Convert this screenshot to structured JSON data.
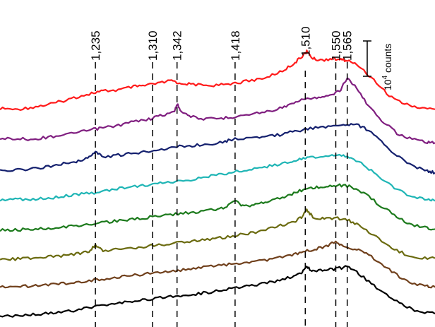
{
  "chart_data": {
    "type": "line",
    "title": "",
    "xlabel": "",
    "ylabel": "",
    "x_axis": "Raman shift (cm^-1), increasing left to right (not printed)",
    "xlim": [
      1110,
      1680
    ],
    "grid": false,
    "peak_lines": [
      {
        "label": "1,235",
        "x": 1235
      },
      {
        "label": "1,310",
        "x": 1310
      },
      {
        "label": "1,342",
        "x": 1342
      },
      {
        "label": "1,418",
        "x": 1418
      },
      {
        "label": "1,510",
        "x": 1510
      },
      {
        "label": "1,550",
        "x": 1550
      },
      {
        "label": "1,565",
        "x": 1565
      }
    ],
    "scale_bar": {
      "text": "10",
      "superscript": "4",
      "suffix": " counts"
    },
    "series": [
      {
        "color": "#ff1a1a",
        "x": [
          1110,
          1130,
          1150,
          1170,
          1190,
          1210,
          1230,
          1245,
          1265,
          1285,
          1300,
          1320,
          1335,
          1345,
          1360,
          1380,
          1400,
          1418,
          1440,
          1460,
          1480,
          1495,
          1505,
          1512,
          1520,
          1530,
          1545,
          1555,
          1565,
          1580,
          1600,
          1620,
          1640,
          1660,
          1680
        ],
        "y": [
          1.2,
          1.18,
          1.22,
          1.28,
          1.36,
          1.46,
          1.55,
          1.6,
          1.62,
          1.7,
          1.72,
          1.78,
          1.84,
          1.78,
          1.76,
          1.72,
          1.74,
          1.78,
          1.84,
          1.92,
          2.06,
          2.22,
          2.38,
          2.5,
          2.34,
          2.3,
          2.34,
          2.32,
          2.3,
          2.18,
          1.85,
          1.5,
          1.3,
          1.22,
          1.18
        ]
      },
      {
        "color": "#801f80",
        "x": [
          1110,
          1130,
          1150,
          1170,
          1190,
          1210,
          1230,
          1245,
          1265,
          1285,
          1305,
          1320,
          1338,
          1342,
          1348,
          1360,
          1380,
          1400,
          1418,
          1440,
          1460,
          1480,
          1495,
          1510,
          1525,
          1540,
          1555,
          1565,
          1575,
          1590,
          1610,
          1630,
          1650,
          1670,
          1680
        ],
        "y": [
          0.98,
          1.0,
          0.98,
          1.02,
          1.08,
          1.12,
          1.2,
          1.24,
          1.3,
          1.38,
          1.44,
          1.52,
          1.6,
          1.78,
          1.62,
          1.5,
          1.44,
          1.46,
          1.5,
          1.56,
          1.62,
          1.7,
          1.8,
          1.9,
          1.92,
          1.96,
          2.08,
          2.38,
          2.2,
          1.82,
          1.42,
          1.12,
          0.98,
          0.92,
          0.9
        ]
      },
      {
        "color": "#14206e",
        "x": [
          1110,
          1130,
          1150,
          1170,
          1190,
          1210,
          1225,
          1235,
          1245,
          1265,
          1285,
          1305,
          1325,
          1345,
          1365,
          1385,
          1405,
          1418,
          1440,
          1460,
          1480,
          1500,
          1520,
          1540,
          1560,
          1575,
          1590,
          1610,
          1630,
          1650,
          1670,
          1680
        ],
        "y": [
          0.75,
          0.76,
          0.78,
          0.84,
          0.9,
          0.96,
          1.04,
          1.18,
          1.06,
          1.1,
          1.14,
          1.2,
          1.24,
          1.3,
          1.32,
          1.36,
          1.42,
          1.48,
          1.5,
          1.52,
          1.58,
          1.66,
          1.72,
          1.76,
          1.8,
          1.82,
          1.7,
          1.4,
          1.08,
          0.86,
          0.74,
          0.7
        ]
      },
      {
        "color": "#1fb5b5",
        "x": [
          1110,
          1130,
          1150,
          1170,
          1190,
          1210,
          1230,
          1250,
          1270,
          1290,
          1310,
          1330,
          1350,
          1370,
          1390,
          1410,
          1430,
          1450,
          1470,
          1490,
          1505,
          1520,
          1540,
          1555,
          1570,
          1590,
          1610,
          1630,
          1650,
          1670,
          1680
        ],
        "y": [
          0.56,
          0.57,
          0.58,
          0.6,
          0.64,
          0.68,
          0.72,
          0.78,
          0.84,
          0.88,
          0.92,
          0.96,
          1.0,
          1.06,
          1.12,
          1.18,
          1.24,
          1.3,
          1.36,
          1.44,
          1.5,
          1.55,
          1.56,
          1.58,
          1.54,
          1.32,
          1.04,
          0.8,
          0.64,
          0.56,
          0.54
        ]
      },
      {
        "color": "#1c7a1c",
        "x": [
          1110,
          1130,
          1150,
          1170,
          1190,
          1210,
          1230,
          1250,
          1270,
          1290,
          1310,
          1330,
          1350,
          1370,
          1390,
          1405,
          1418,
          1430,
          1445,
          1460,
          1480,
          1495,
          1510,
          1525,
          1540,
          1555,
          1570,
          1590,
          1610,
          1630,
          1650,
          1670,
          1680
        ],
        "y": [
          0.36,
          0.36,
          0.38,
          0.4,
          0.42,
          0.46,
          0.5,
          0.54,
          0.58,
          0.62,
          0.66,
          0.7,
          0.74,
          0.78,
          0.82,
          0.88,
          1.02,
          0.9,
          0.94,
          1.0,
          1.1,
          1.2,
          1.3,
          1.34,
          1.36,
          1.38,
          1.36,
          1.16,
          0.9,
          0.66,
          0.48,
          0.4,
          0.38
        ]
      },
      {
        "color": "#6b6b10",
        "x": [
          1110,
          1130,
          1150,
          1170,
          1190,
          1210,
          1225,
          1235,
          1245,
          1265,
          1285,
          1305,
          1325,
          1345,
          1365,
          1385,
          1405,
          1425,
          1445,
          1465,
          1480,
          1495,
          1505,
          1512,
          1520,
          1535,
          1550,
          1565,
          1580,
          1600,
          1620,
          1640,
          1660,
          1680
        ],
        "y": [
          0.18,
          0.18,
          0.2,
          0.22,
          0.26,
          0.3,
          0.34,
          0.5,
          0.36,
          0.4,
          0.44,
          0.48,
          0.52,
          0.56,
          0.6,
          0.64,
          0.68,
          0.74,
          0.8,
          0.88,
          0.96,
          1.04,
          1.14,
          1.3,
          1.14,
          1.1,
          1.12,
          1.08,
          0.96,
          0.72,
          0.46,
          0.3,
          0.22,
          0.2
        ]
      },
      {
        "color": "#70401c",
        "x": [
          1110,
          1130,
          1150,
          1170,
          1190,
          1210,
          1230,
          1250,
          1270,
          1290,
          1310,
          1330,
          1350,
          1370,
          1390,
          1410,
          1430,
          1450,
          1470,
          1490,
          1505,
          1520,
          1535,
          1550,
          1560,
          1575,
          1590,
          1610,
          1630,
          1650,
          1670,
          1680
        ],
        "y": [
          0.02,
          0.03,
          0.05,
          0.08,
          0.1,
          0.14,
          0.18,
          0.22,
          0.26,
          0.3,
          0.34,
          0.38,
          0.42,
          0.46,
          0.5,
          0.54,
          0.58,
          0.62,
          0.68,
          0.74,
          0.82,
          0.88,
          0.94,
          1.06,
          0.96,
          0.9,
          0.8,
          0.56,
          0.3,
          0.12,
          0.04,
          0.02
        ]
      },
      {
        "color": "#000000",
        "x": [
          1110,
          1130,
          1150,
          1170,
          1190,
          1210,
          1230,
          1250,
          1270,
          1290,
          1310,
          1330,
          1350,
          1370,
          1390,
          1410,
          1430,
          1450,
          1470,
          1490,
          1505,
          1512,
          1520,
          1535,
          1550,
          1565,
          1580,
          1600,
          1620,
          1640,
          1660,
          1680
        ],
        "y": [
          -0.15,
          -0.14,
          -0.12,
          -0.1,
          -0.06,
          -0.02,
          0.04,
          0.1,
          0.16,
          0.2,
          0.24,
          0.28,
          0.32,
          0.36,
          0.4,
          0.46,
          0.52,
          0.58,
          0.64,
          0.74,
          0.84,
          0.96,
          0.88,
          0.9,
          0.92,
          0.98,
          0.82,
          0.54,
          0.28,
          0.08,
          -0.06,
          -0.1
        ]
      }
    ]
  }
}
